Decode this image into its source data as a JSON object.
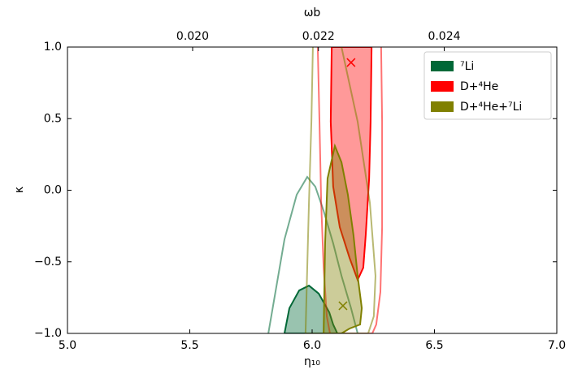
{
  "chart_data": {
    "type": "contour",
    "x_label": "η₁₀",
    "x2_label": "ωb",
    "y_label": "κ",
    "xlim": [
      5,
      7
    ],
    "xticks": [
      {
        "value": 5,
        "label": "5.0"
      },
      {
        "value": 5.5,
        "label": "5.5"
      },
      {
        "value": 6,
        "label": "6.0"
      },
      {
        "value": 6.5,
        "label": "6.5"
      },
      {
        "value": 7,
        "label": "7.0"
      }
    ],
    "x2lim": [
      0.01801,
      0.02579
    ],
    "x2ticks": [
      {
        "value": 0.02,
        "label": "0.020"
      },
      {
        "value": 0.022,
        "label": "0.022"
      },
      {
        "value": 0.024,
        "label": "0.024"
      }
    ],
    "ylim": [
      -1,
      1
    ],
    "yticks": [
      {
        "value": -1,
        "label": "−1.0"
      },
      {
        "value": -0.5,
        "label": "−0.5"
      },
      {
        "value": 0,
        "label": "0.0"
      },
      {
        "value": 0.5,
        "label": "0.5"
      },
      {
        "value": 1,
        "label": "1.0"
      }
    ],
    "legend": "upper right",
    "series": [
      {
        "name": "⁷Li",
        "color": "#006837",
        "fill_x": [
          5.887,
          5.907,
          5.947,
          5.987,
          6.027,
          6.07,
          6.086,
          6.103
        ],
        "fill_y": [
          -1.0,
          -0.824,
          -0.7,
          -0.666,
          -0.722,
          -0.853,
          -0.938,
          -1.0
        ],
        "outer_x": [
          5.821,
          5.887,
          5.937,
          5.98,
          6.013,
          6.047,
          6.086,
          6.12,
          6.159,
          6.186
        ],
        "outer_y": [
          -1.0,
          -0.343,
          -0.031,
          0.093,
          0.025,
          -0.144,
          -0.371,
          -0.598,
          -0.824,
          -1.0
        ]
      },
      {
        "name": "D+⁴He",
        "color": "#ff0000",
        "fill_x": [
          6.08,
          6.076,
          6.086,
          6.113,
          6.153,
          6.186,
          6.209,
          6.219,
          6.233,
          6.239,
          6.243
        ],
        "fill_y": [
          1.0,
          0.479,
          0.025,
          -0.258,
          -0.473,
          -0.626,
          -0.541,
          -0.314,
          0.082,
          0.479,
          1.0
        ],
        "outer_x": [
          6.023,
          6.03,
          6.037,
          6.047,
          6.06,
          6.073,
          6.246,
          6.262,
          6.279,
          6.286,
          6.286,
          6.282
        ],
        "outer_y": [
          1.0,
          0.479,
          -0.088,
          -0.541,
          -0.881,
          -1.0,
          -1.0,
          -0.938,
          -0.711,
          -0.258,
          0.479,
          1.0
        ],
        "best_x": 6.159,
        "best_y": 0.892
      },
      {
        "name": "D+⁴He+⁷Li",
        "color": "#808000",
        "fill_x": [
          6.047,
          6.053,
          6.063,
          6.093,
          6.12,
          6.146,
          6.169,
          6.186,
          6.203,
          6.196,
          6.153,
          6.12
        ],
        "fill_y": [
          -1.0,
          -0.371,
          0.082,
          0.309,
          0.195,
          -0.031,
          -0.314,
          -0.598,
          -0.824,
          -0.938,
          -0.966,
          -1.0
        ],
        "outer_x": [
          6.003,
          5.997,
          5.987,
          5.98,
          5.973,
          6.229,
          6.252,
          6.259,
          6.236,
          6.186,
          6.12
        ],
        "outer_y": [
          1.0,
          0.479,
          -0.088,
          -0.541,
          -1.0,
          -1.0,
          -0.881,
          -0.598,
          -0.088,
          0.479,
          1.0
        ],
        "best_x": 6.126,
        "best_y": -0.807
      }
    ]
  }
}
